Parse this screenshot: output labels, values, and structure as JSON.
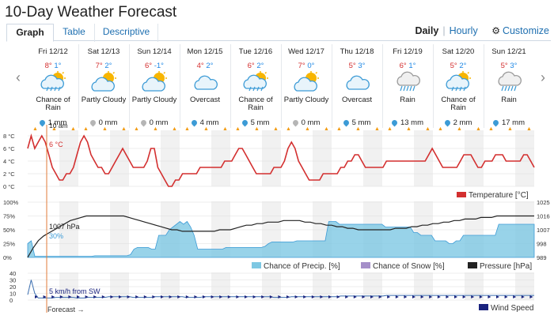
{
  "title": "10-Day Weather Forecast",
  "tabs": [
    {
      "label": "Graph",
      "active": true
    },
    {
      "label": "Table",
      "active": false
    },
    {
      "label": "Descriptive",
      "active": false
    }
  ],
  "modes": {
    "daily": "Daily",
    "separator": "|",
    "hourly": "Hourly",
    "customize": "Customize"
  },
  "nav": {
    "prev": "‹",
    "next": "›"
  },
  "days": [
    {
      "label": "Fri 12/12",
      "max": "8°",
      "min": "1°",
      "icon": "rain-cloud-icon",
      "desc": "Chance of Rain",
      "precip": "1 mm"
    },
    {
      "label": "Sat 12/13",
      "max": "7°",
      "min": "2°",
      "icon": "partly-cloudy-icon",
      "desc": "Partly Cloudy",
      "precip": "0 mm"
    },
    {
      "label": "Sun 12/14",
      "max": "6°",
      "min": "-1°",
      "icon": "partly-cloudy-icon",
      "desc": "Partly Cloudy",
      "precip": "0 mm"
    },
    {
      "label": "Mon 12/15",
      "max": "4°",
      "min": "2°",
      "icon": "overcast-icon",
      "desc": "Overcast",
      "precip": "4 mm"
    },
    {
      "label": "Tue 12/16",
      "max": "6°",
      "min": "2°",
      "icon": "rain-cloud-icon",
      "desc": "Chance of Rain",
      "precip": "5 mm"
    },
    {
      "label": "Wed 12/17",
      "max": "7°",
      "min": "0°",
      "icon": "partly-cloudy-icon",
      "desc": "Partly Cloudy",
      "precip": "0 mm"
    },
    {
      "label": "Thu 12/18",
      "max": "5°",
      "min": "3°",
      "icon": "overcast-icon",
      "desc": "Overcast",
      "precip": "5 mm"
    },
    {
      "label": "Fri 12/19",
      "max": "6°",
      "min": "1°",
      "icon": "rain-icon",
      "desc": "Rain",
      "precip": "13 mm"
    },
    {
      "label": "Sat 12/20",
      "max": "5°",
      "min": "2°",
      "icon": "rain-cloud-icon",
      "desc": "Chance of Rain",
      "precip": "2 mm"
    },
    {
      "label": "Sun 12/21",
      "max": "5°",
      "min": "3°",
      "icon": "rain-icon",
      "desc": "Rain",
      "precip": "17 mm"
    }
  ],
  "colors": {
    "temperature": "#d32f2f",
    "precip": "#7ec8e3",
    "snow": "#a58fc9",
    "pressure": "#222222",
    "wind": "#1a237e",
    "cursor": "#e07b39",
    "link": "#1e6fb0"
  },
  "cursor": {
    "time": "10 am",
    "temp": "6 °C",
    "pressure": "1007 hPa",
    "precip": "30%",
    "wind": "5 km/h from SW",
    "forecast": "Forecast →"
  },
  "chart_data": [
    {
      "type": "line",
      "title": "",
      "series": [
        {
          "name": "Temperature [°C]",
          "values": [
            6,
            8,
            6,
            7,
            8,
            7,
            5,
            3,
            2,
            1,
            1,
            2,
            2,
            3,
            5,
            7,
            8,
            7,
            5,
            4,
            3,
            3,
            2,
            2,
            3,
            4,
            5,
            6,
            5,
            4,
            3,
            3,
            3,
            3,
            4,
            6,
            6,
            3,
            2,
            1,
            0,
            0,
            1,
            1,
            2,
            2,
            2,
            2,
            2,
            3,
            3,
            3,
            3,
            3,
            3,
            3,
            4,
            4,
            4,
            5,
            6,
            6,
            5,
            4,
            3,
            2,
            2,
            2,
            2,
            2,
            3,
            3,
            3,
            4,
            6,
            7,
            6,
            4,
            3,
            2,
            1,
            1,
            1,
            1,
            2,
            2,
            2,
            2,
            2,
            3,
            3,
            4,
            4,
            5,
            5,
            4,
            3,
            3,
            3,
            3,
            3,
            3,
            4,
            4,
            4,
            4,
            4,
            4,
            4,
            4,
            4,
            4,
            4,
            4,
            5,
            6,
            5,
            4,
            3,
            3,
            3,
            3,
            3,
            4,
            5,
            5,
            5,
            4,
            3,
            3,
            4,
            4,
            4,
            5,
            5,
            5,
            4,
            4,
            4,
            4,
            4,
            5,
            5,
            4,
            3
          ]
        }
      ],
      "yticks": [
        "0 °C",
        "2 °C",
        "4 °C",
        "6 °C",
        "8 °C"
      ],
      "ylim": [
        0,
        8
      ]
    },
    {
      "type": "area",
      "series": [
        {
          "name": "Chance of Precip. [%]",
          "values": [
            25,
            30,
            2,
            2,
            2,
            2,
            2,
            2,
            2,
            2,
            2,
            2,
            2,
            2,
            2,
            2,
            2,
            2,
            2,
            3,
            3,
            3,
            3,
            3,
            3,
            3,
            3,
            3,
            3,
            5,
            15,
            18,
            18,
            18,
            18,
            15,
            15,
            40,
            40,
            40,
            50,
            55,
            60,
            65,
            60,
            65,
            55,
            40,
            15,
            15,
            15,
            15,
            15,
            15,
            15,
            15,
            18,
            18,
            18,
            18,
            18,
            18,
            18,
            18,
            18,
            18,
            18,
            20,
            25,
            28,
            28,
            28,
            28,
            28,
            28,
            28,
            30,
            30,
            30,
            30,
            30,
            30,
            30,
            30,
            30,
            65,
            65,
            65,
            60,
            60,
            60,
            60,
            60,
            60,
            60,
            60,
            60,
            60,
            60,
            60,
            60,
            55,
            55,
            55,
            55,
            55,
            55,
            55,
            55,
            45,
            45,
            40,
            40,
            40,
            40,
            30,
            30,
            30,
            30,
            25,
            25,
            30,
            30,
            40,
            40,
            40,
            40,
            40,
            40,
            40,
            40,
            40,
            40,
            60,
            60,
            60,
            60,
            60,
            60,
            60,
            60,
            60,
            60,
            60
          ]
        },
        {
          "name": "Chance of Snow [%]",
          "values": []
        },
        {
          "name": "Pressure [hPa]",
          "values": [
            989,
            995,
            1000,
            1003,
            1005,
            1007,
            1009,
            1011,
            1013,
            1014,
            1015,
            1016,
            1016,
            1016,
            1016,
            1016,
            1016,
            1016,
            1016,
            1015,
            1014,
            1013,
            1012,
            1011,
            1010,
            1009,
            1008,
            1007,
            1007,
            1006,
            1006,
            1006,
            1006,
            1006,
            1006,
            1006,
            1007,
            1007,
            1007,
            1008,
            1009,
            1010,
            1010,
            1011,
            1011,
            1012,
            1012,
            1012,
            1013,
            1013,
            1013,
            1013,
            1012,
            1012,
            1011,
            1011,
            1010,
            1010,
            1009,
            1009,
            1008,
            1008,
            1007,
            1007,
            1007,
            1007,
            1007,
            1007,
            1007,
            1008,
            1008,
            1008,
            1009,
            1009,
            1010,
            1010,
            1011,
            1011,
            1012,
            1012,
            1013,
            1013,
            1014,
            1014,
            1014,
            1015,
            1015,
            1015,
            1016,
            1016,
            1016,
            1016,
            1016,
            1016,
            1016,
            1016
          ]
        }
      ],
      "yticks_left": [
        "0%",
        "25%",
        "50%",
        "75%",
        "100%"
      ],
      "yticks_right": [
        "989",
        "998",
        "1007",
        "1016",
        "1025"
      ],
      "ylim_left": [
        0,
        100
      ],
      "ylim_right": [
        989,
        1025
      ]
    },
    {
      "type": "line",
      "series": [
        {
          "name": "Wind Speed",
          "values": [
            8,
            30,
            10,
            3,
            3,
            3,
            3,
            3,
            4,
            4,
            4,
            4,
            4,
            4,
            3,
            3,
            3,
            4,
            4,
            4,
            4,
            4,
            4,
            5,
            5,
            5,
            5,
            5,
            5,
            5,
            4,
            4,
            4,
            4,
            4,
            4,
            5,
            5,
            5,
            5,
            5,
            5,
            5,
            5,
            5,
            4,
            4,
            4,
            4,
            4,
            5,
            5,
            5,
            5,
            5,
            5,
            5,
            5,
            5,
            5,
            5,
            5,
            5,
            5,
            5,
            5,
            5,
            5,
            5,
            5,
            4,
            4,
            4,
            4,
            4,
            5,
            5,
            5,
            5,
            5,
            5,
            5,
            5,
            5,
            5,
            5,
            5,
            5,
            5,
            6,
            6,
            6,
            6,
            6,
            6,
            6,
            6,
            6,
            6,
            6,
            6,
            6,
            7,
            7,
            7,
            7,
            7,
            7,
            7,
            7,
            7,
            7,
            7,
            7,
            7,
            7,
            7,
            7,
            7,
            7,
            7,
            7,
            7,
            7,
            7,
            7,
            7,
            7,
            7,
            7,
            7,
            7,
            7,
            7,
            7,
            7,
            7,
            7,
            7,
            7,
            7,
            7,
            7,
            7,
            7
          ]
        }
      ],
      "yticks": [
        "0",
        "10",
        "20",
        "30",
        "40"
      ],
      "ylim": [
        0,
        40
      ]
    }
  ]
}
